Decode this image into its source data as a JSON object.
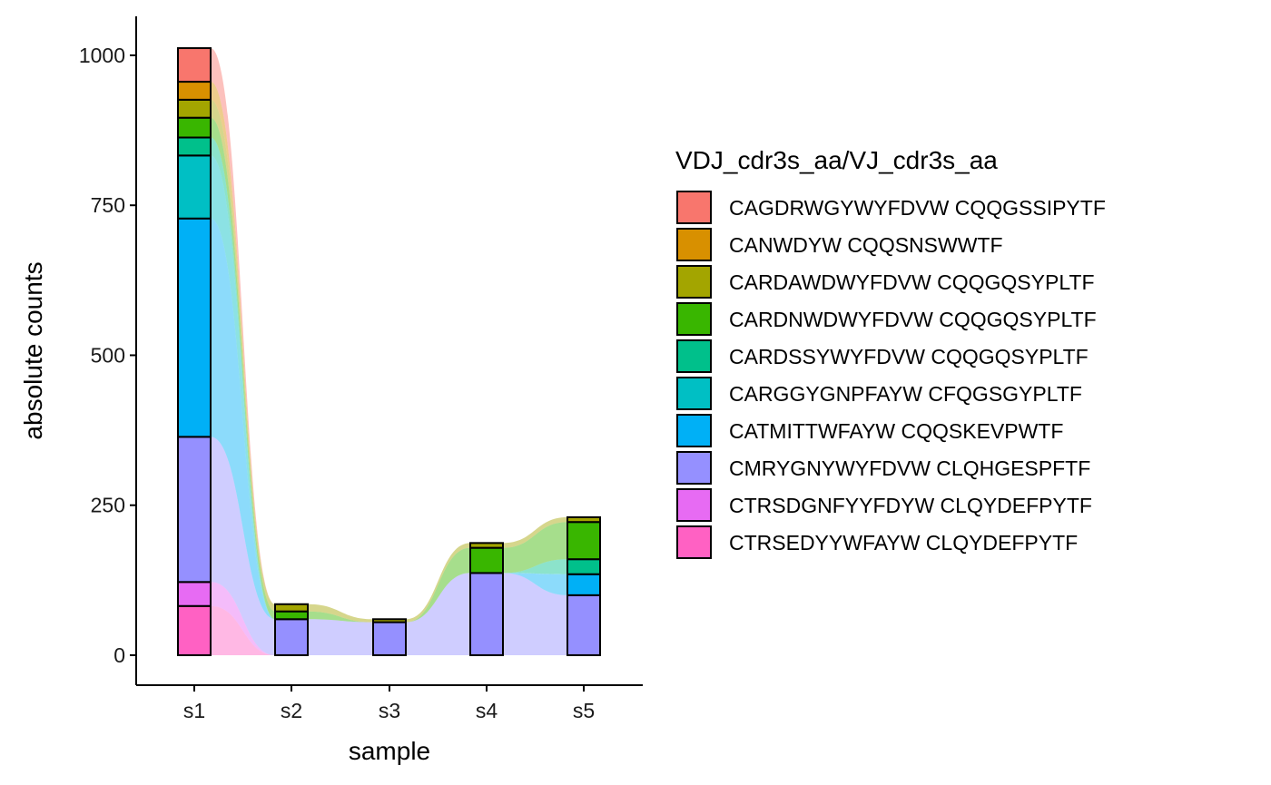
{
  "chart_data": {
    "type": "bar",
    "subtype": "stacked-alluvial",
    "xlabel": "sample",
    "ylabel": "absolute counts",
    "ylim": [
      -50,
      1065
    ],
    "yticks": [
      0,
      250,
      500,
      750,
      1000
    ],
    "categories": [
      "s1",
      "s2",
      "s3",
      "s4",
      "s5"
    ],
    "legend": {
      "title": "VDJ_cdr3s_aa/VJ_cdr3s_aa",
      "position": "right"
    },
    "grid": false,
    "series": [
      {
        "name": "CTRSEDYYWFAYW CLQYDEFPYTF",
        "color": "#FF61C3",
        "values": [
          82,
          0,
          0,
          0,
          0
        ]
      },
      {
        "name": "CTRSDGNFYYFDYW CLQYDEFPYTF",
        "color": "#E76BF3",
        "values": [
          40,
          0,
          0,
          0,
          0
        ]
      },
      {
        "name": "CMRYGNYWYFDVW CLQHGESPFTF",
        "color": "#9590FF",
        "values": [
          242,
          60,
          55,
          137,
          100
        ]
      },
      {
        "name": "CATMITTWFAYW CQQSKEVPWTF",
        "color": "#00B0F6",
        "values": [
          364,
          0,
          0,
          0,
          35
        ]
      },
      {
        "name": "CARGGYGNPFAYW CFQGSGYPLTF",
        "color": "#00BFC4",
        "values": [
          105,
          0,
          0,
          0,
          0
        ]
      },
      {
        "name": "CARDSSYWYFDVW CQQGQSYPLTF",
        "color": "#00C08B",
        "values": [
          30,
          0,
          0,
          0,
          25
        ]
      },
      {
        "name": "CARDNWDWYFDVW CQQGQSYPLTF",
        "color": "#39B600",
        "values": [
          33,
          13,
          0,
          42,
          62
        ]
      },
      {
        "name": "CARDAWDWYFDVW CQQGQSYPLTF",
        "color": "#A3A500",
        "values": [
          30,
          12,
          5,
          8,
          8
        ]
      },
      {
        "name": "CANWDYW CQQSNSWWTF",
        "color": "#D89000",
        "values": [
          30,
          0,
          0,
          0,
          0
        ]
      },
      {
        "name": "CAGDRWGYWYFDVW CQQGSSIPYTF",
        "color": "#F8766D",
        "values": [
          56,
          0,
          0,
          0,
          0
        ]
      }
    ]
  }
}
